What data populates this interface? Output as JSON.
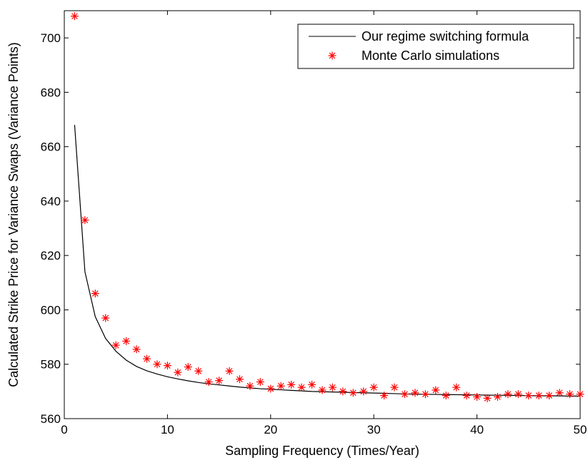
{
  "chart_data": {
    "type": "line",
    "title": "",
    "xlabel": "Sampling Frequency (Times/Year)",
    "ylabel": "Calculated Strike Price for Variance Swaps (Variance Points)",
    "xlim": [
      0,
      50
    ],
    "ylim": [
      560,
      710
    ],
    "xticks": [
      0,
      10,
      20,
      30,
      40,
      50
    ],
    "yticks": [
      560,
      580,
      600,
      620,
      640,
      660,
      680,
      700
    ],
    "grid": false,
    "legend_position": "top-right",
    "series": [
      {
        "name": "Our regime switching formula",
        "style": "line",
        "color": "#000000",
        "x": [
          1,
          2,
          3,
          4,
          5,
          6,
          7,
          8,
          9,
          10,
          11,
          12,
          13,
          14,
          15,
          16,
          17,
          18,
          19,
          20,
          21,
          22,
          23,
          24,
          25,
          26,
          27,
          28,
          29,
          30,
          31,
          32,
          33,
          34,
          35,
          36,
          37,
          38,
          39,
          40,
          41,
          42,
          43,
          44,
          45,
          46,
          47,
          48,
          49,
          50
        ],
        "y": [
          668,
          614,
          597.5,
          589.5,
          584.8,
          581.5,
          579.2,
          577.6,
          576.4,
          575.4,
          574.6,
          573.9,
          573.3,
          572.8,
          572.4,
          572.0,
          571.6,
          571.3,
          571.0,
          570.8,
          570.6,
          570.4,
          570.2,
          570.0,
          569.9,
          569.8,
          569.7,
          569.6,
          569.5,
          569.4,
          569.3,
          569.2,
          569.1,
          569.0,
          568.95,
          568.9,
          568.85,
          568.8,
          568.75,
          568.7,
          568.65,
          568.6,
          568.55,
          568.5,
          568.45,
          568.4,
          568.4,
          568.35,
          568.3,
          568.3
        ]
      },
      {
        "name": "Monte Carlo simulations",
        "style": "marker-star",
        "color": "#ff0000",
        "x": [
          1,
          2,
          3,
          4,
          5,
          6,
          7,
          8,
          9,
          10,
          11,
          12,
          13,
          14,
          15,
          16,
          17,
          18,
          19,
          20,
          21,
          22,
          23,
          24,
          25,
          26,
          27,
          28,
          29,
          30,
          31,
          32,
          33,
          34,
          35,
          36,
          37,
          38,
          39,
          40,
          41,
          42,
          43,
          44,
          45,
          46,
          47,
          48,
          49,
          50
        ],
        "y": [
          708,
          633,
          606,
          597,
          587,
          588.5,
          585.5,
          582,
          580,
          579.5,
          577,
          579,
          577.5,
          573.5,
          574,
          577.5,
          574.5,
          572,
          573.5,
          571,
          572,
          572.5,
          571.5,
          572.5,
          570.5,
          571.5,
          570,
          569.5,
          570,
          571.5,
          568.5,
          571.5,
          569,
          569.5,
          569,
          570.5,
          568.5,
          571.5,
          568.5,
          568,
          567.5,
          568,
          569,
          569,
          568.5,
          568.5,
          568.5,
          569.5,
          569,
          569
        ]
      }
    ]
  }
}
